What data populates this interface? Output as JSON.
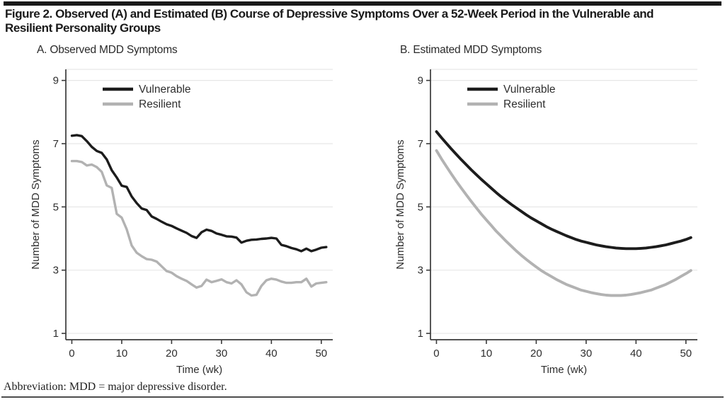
{
  "figure": {
    "title_line1": "Figure 2. Observed (A) and Estimated (B) Course of Depressive Symptoms Over a 52-Week Period in the Vulnerable and",
    "title_line2": "Resilient Personality Groups",
    "footnote": "Abbreviation: MDD = major depressive disorder."
  },
  "colors": {
    "vulnerable": "#1c1c1c",
    "resilient": "#b2b2b2",
    "gridline": "#e7e7e7",
    "axis": "#3a3a3a"
  },
  "chart_data": [
    {
      "id": "panel-a",
      "type": "line",
      "title": "A. Observed MDD Symptoms",
      "xlabel": "Time (wk)",
      "ylabel": "Number of MDD Symptoms",
      "x_ticks": [
        0,
        10,
        20,
        30,
        40,
        50
      ],
      "y_ticks": [
        1,
        3,
        5,
        7,
        9
      ],
      "xlim": [
        0,
        52
      ],
      "ylim": [
        1,
        9
      ],
      "grid": true,
      "legend_position": "top-left-inside",
      "x": [
        0,
        1,
        2,
        3,
        4,
        5,
        6,
        7,
        8,
        9,
        10,
        11,
        12,
        13,
        14,
        15,
        16,
        17,
        18,
        19,
        20,
        21,
        22,
        23,
        24,
        25,
        26,
        27,
        28,
        29,
        30,
        31,
        32,
        33,
        34,
        35,
        36,
        37,
        38,
        39,
        40,
        41,
        42,
        43,
        44,
        45,
        46,
        47,
        48,
        49,
        50,
        51
      ],
      "series": [
        {
          "name": "Vulnerable",
          "color": "#1c1c1c",
          "values": [
            7.25,
            7.27,
            7.24,
            7.08,
            6.9,
            6.77,
            6.71,
            6.5,
            6.16,
            5.93,
            5.67,
            5.63,
            5.33,
            5.12,
            4.95,
            4.9,
            4.7,
            4.62,
            4.53,
            4.45,
            4.4,
            4.32,
            4.25,
            4.18,
            4.08,
            4.02,
            4.2,
            4.28,
            4.24,
            4.16,
            4.12,
            4.07,
            4.06,
            4.03,
            3.87,
            3.93,
            3.96,
            3.97,
            3.99,
            4.0,
            4.02,
            4.0,
            3.8,
            3.76,
            3.7,
            3.66,
            3.6,
            3.68,
            3.6,
            3.65,
            3.71,
            3.73
          ]
        },
        {
          "name": "Resilient",
          "color": "#b2b2b2",
          "values": [
            6.45,
            6.45,
            6.42,
            6.31,
            6.34,
            6.26,
            6.11,
            5.68,
            5.6,
            4.78,
            4.66,
            4.29,
            3.78,
            3.55,
            3.44,
            3.35,
            3.33,
            3.27,
            3.12,
            2.97,
            2.92,
            2.81,
            2.73,
            2.66,
            2.55,
            2.45,
            2.5,
            2.7,
            2.62,
            2.66,
            2.71,
            2.62,
            2.58,
            2.68,
            2.55,
            2.3,
            2.2,
            2.22,
            2.5,
            2.68,
            2.73,
            2.7,
            2.64,
            2.6,
            2.6,
            2.62,
            2.62,
            2.73,
            2.48,
            2.58,
            2.6,
            2.62
          ]
        }
      ]
    },
    {
      "id": "panel-b",
      "type": "line",
      "title": "B. Estimated MDD Symptoms",
      "xlabel": "Time (wk)",
      "ylabel": "Number of MDD Symptoms",
      "x_ticks": [
        0,
        10,
        20,
        30,
        40,
        50
      ],
      "y_ticks": [
        1,
        3,
        5,
        7,
        9
      ],
      "xlim": [
        0,
        52
      ],
      "ylim": [
        1,
        9
      ],
      "grid": true,
      "legend_position": "top-left-inside",
      "x": [
        0,
        1,
        2,
        3,
        4,
        5,
        6,
        7,
        8,
        9,
        10,
        11,
        12,
        13,
        14,
        15,
        16,
        17,
        18,
        19,
        20,
        21,
        22,
        23,
        24,
        25,
        26,
        27,
        28,
        29,
        30,
        31,
        32,
        33,
        34,
        35,
        36,
        37,
        38,
        39,
        40,
        41,
        42,
        43,
        44,
        45,
        46,
        47,
        48,
        49,
        50,
        51
      ],
      "series": [
        {
          "name": "Vulnerable",
          "color": "#1c1c1c",
          "values": [
            7.38,
            7.19,
            7.01,
            6.83,
            6.66,
            6.49,
            6.33,
            6.17,
            6.02,
            5.87,
            5.73,
            5.59,
            5.45,
            5.32,
            5.2,
            5.08,
            4.97,
            4.86,
            4.75,
            4.65,
            4.56,
            4.47,
            4.38,
            4.3,
            4.23,
            4.16,
            4.09,
            4.03,
            3.97,
            3.92,
            3.88,
            3.84,
            3.8,
            3.77,
            3.74,
            3.72,
            3.7,
            3.69,
            3.68,
            3.68,
            3.68,
            3.69,
            3.7,
            3.72,
            3.74,
            3.77,
            3.8,
            3.84,
            3.88,
            3.92,
            3.97,
            4.03
          ]
        },
        {
          "name": "Resilient",
          "color": "#b2b2b2",
          "values": [
            6.78,
            6.52,
            6.28,
            6.04,
            5.81,
            5.59,
            5.38,
            5.17,
            4.97,
            4.77,
            4.59,
            4.41,
            4.23,
            4.07,
            3.91,
            3.76,
            3.61,
            3.47,
            3.34,
            3.22,
            3.1,
            2.99,
            2.89,
            2.8,
            2.71,
            2.63,
            2.55,
            2.49,
            2.43,
            2.37,
            2.33,
            2.29,
            2.26,
            2.23,
            2.21,
            2.2,
            2.2,
            2.2,
            2.21,
            2.23,
            2.26,
            2.29,
            2.33,
            2.37,
            2.43,
            2.49,
            2.55,
            2.63,
            2.71,
            2.8,
            2.89,
            2.99
          ]
        }
      ]
    }
  ]
}
